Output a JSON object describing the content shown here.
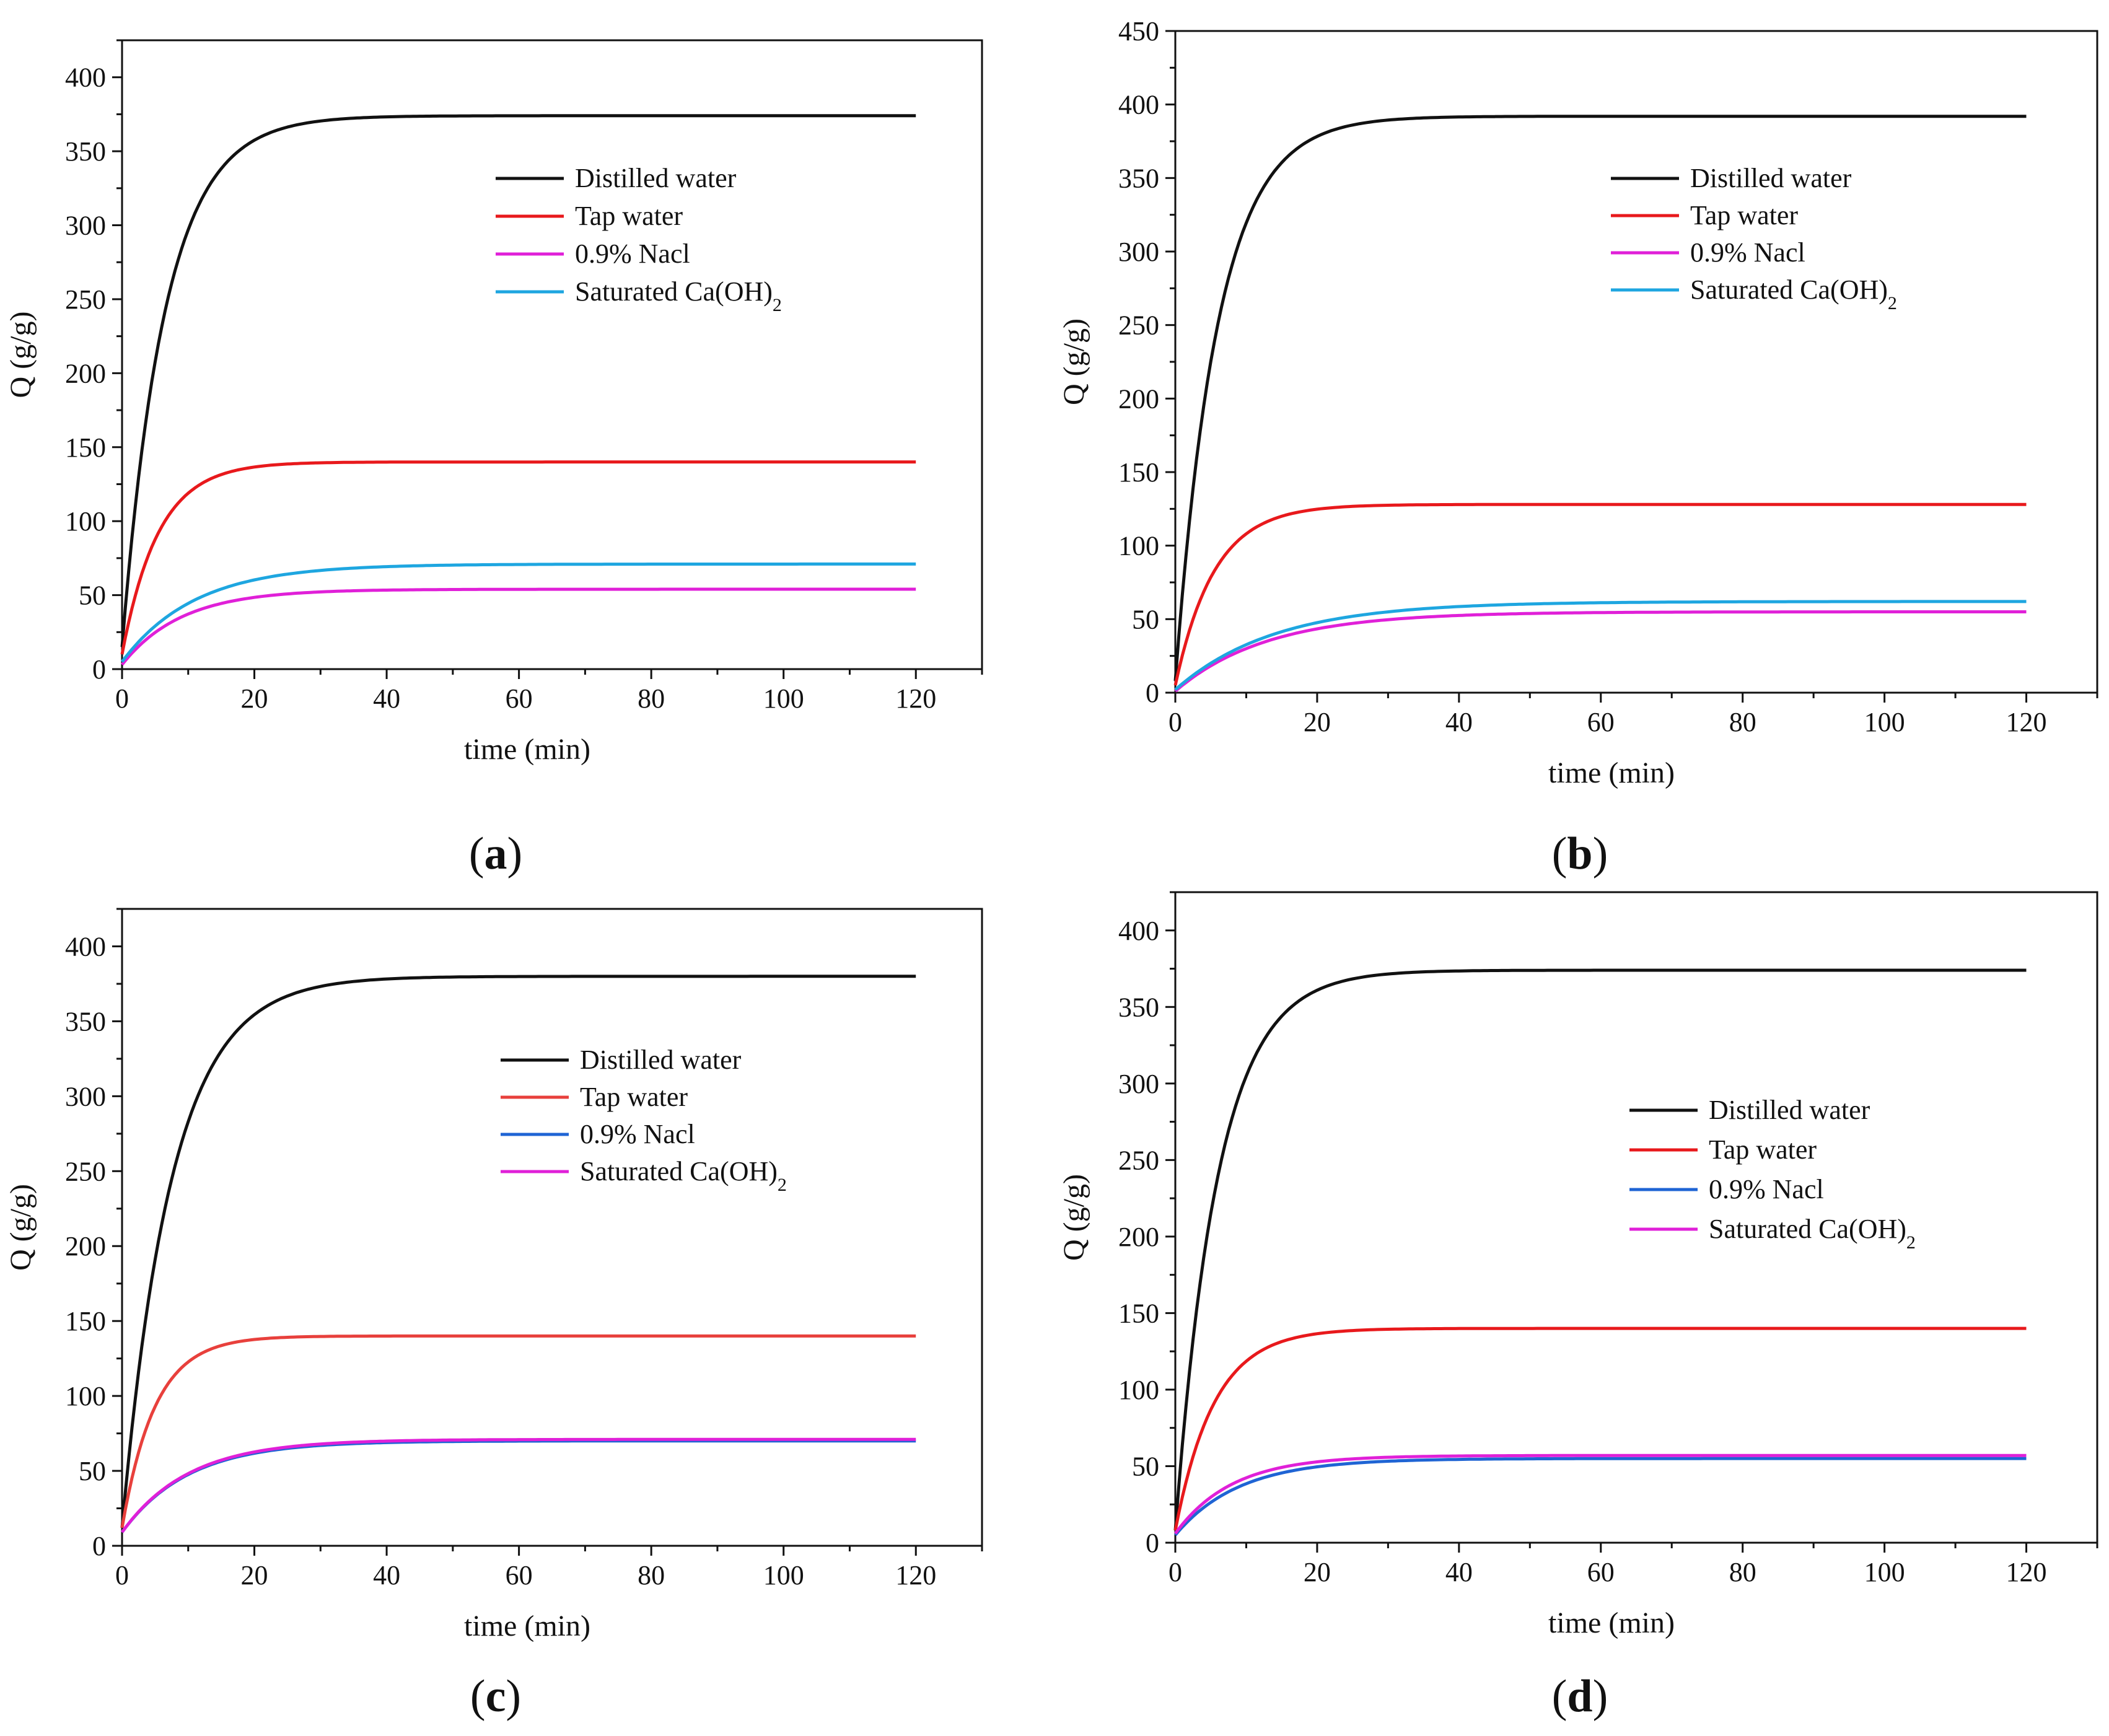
{
  "figure": {
    "panels": [
      "a",
      "b",
      "c",
      "d"
    ]
  },
  "chart_data": [
    {
      "id": "a",
      "type": "line",
      "panel_label": "a",
      "xlabel": "time (min)",
      "ylabel": "Q (g/g)",
      "xlim": [
        0,
        130
      ],
      "ylim": [
        0,
        425
      ],
      "xticks": [
        0,
        20,
        40,
        60,
        80,
        100,
        120
      ],
      "yticks": [
        0,
        50,
        100,
        150,
        200,
        250,
        300,
        350,
        400
      ],
      "legend_position": "upper-center",
      "series": [
        {
          "name": "Distilled water",
          "sub": "",
          "color": "#111111",
          "x_end": 120,
          "start": 15,
          "plateau": 374,
          "tau": 6.5
        },
        {
          "name": "Tap water",
          "sub": "",
          "color": "#e8191c",
          "x_end": 120,
          "start": 10,
          "plateau": 140,
          "tau": 5.5
        },
        {
          "name": "0.9% Nacl",
          "sub": "",
          "color": "#e020d8",
          "x_end": 120,
          "start": 3,
          "plateau": 54,
          "tau": 9
        },
        {
          "name": "Saturated Ca(OH)",
          "sub": "2",
          "color": "#1ea6e0",
          "x_end": 120,
          "start": 5,
          "plateau": 71,
          "tau": 11
        }
      ]
    },
    {
      "id": "b",
      "type": "line",
      "panel_label": "b",
      "xlabel": "time (min)",
      "ylabel": "Q (g/g)",
      "xlim": [
        0,
        130
      ],
      "ylim": [
        0,
        450
      ],
      "xticks": [
        0,
        20,
        40,
        60,
        80,
        100,
        120
      ],
      "yticks": [
        0,
        50,
        100,
        150,
        200,
        250,
        300,
        350,
        400,
        450
      ],
      "legend_position": "upper-center",
      "series": [
        {
          "name": "Distilled water",
          "sub": "",
          "color": "#111111",
          "x_end": 120,
          "start": 8,
          "plateau": 392,
          "tau": 6
        },
        {
          "name": "Tap water",
          "sub": "",
          "color": "#e8191c",
          "x_end": 120,
          "start": 5,
          "plateau": 128,
          "tau": 5.5
        },
        {
          "name": "0.9% Nacl",
          "sub": "",
          "color": "#e020d8",
          "x_end": 120,
          "start": 1,
          "plateau": 55,
          "tau": 13
        },
        {
          "name": "Saturated Ca(OH)",
          "sub": "2",
          "color": "#1ea6e0",
          "x_end": 120,
          "start": 2,
          "plateau": 62,
          "tau": 14
        }
      ]
    },
    {
      "id": "c",
      "type": "line",
      "panel_label": "c",
      "xlabel": "time (min)",
      "ylabel": "Q (g/g)",
      "xlim": [
        0,
        130
      ],
      "ylim": [
        0,
        425
      ],
      "xticks": [
        0,
        20,
        40,
        60,
        80,
        100,
        120
      ],
      "yticks": [
        0,
        50,
        100,
        150,
        200,
        250,
        300,
        350,
        400
      ],
      "legend_position": "center-right",
      "series": [
        {
          "name": "Distilled water",
          "sub": "",
          "color": "#111111",
          "x_end": 120,
          "start": 12,
          "plateau": 380,
          "tau": 7.5
        },
        {
          "name": "Tap water",
          "sub": "",
          "color": "#e8403c",
          "x_end": 120,
          "start": 12,
          "plateau": 140,
          "tau": 5
        },
        {
          "name": "0.9% Nacl",
          "sub": "",
          "color": "#1f64d4",
          "x_end": 120,
          "start": 9,
          "plateau": 70,
          "tau": 10
        },
        {
          "name": "Saturated Ca(OH)",
          "sub": "2",
          "color": "#e020d8",
          "x_end": 120,
          "start": 9,
          "plateau": 71,
          "tau": 10
        }
      ]
    },
    {
      "id": "d",
      "type": "line",
      "panel_label": "d",
      "xlabel": "time (min)",
      "ylabel": "Q (g/g)",
      "xlim": [
        0,
        130
      ],
      "ylim": [
        0,
        425
      ],
      "xticks": [
        0,
        20,
        40,
        60,
        80,
        100,
        120
      ],
      "yticks": [
        0,
        50,
        100,
        150,
        200,
        250,
        300,
        350,
        400
      ],
      "legend_position": "center-right",
      "series": [
        {
          "name": "Distilled water",
          "sub": "",
          "color": "#111111",
          "x_end": 120,
          "start": 8,
          "plateau": 374,
          "tau": 6
        },
        {
          "name": "Tap water",
          "sub": "",
          "color": "#e8191c",
          "x_end": 120,
          "start": 8,
          "plateau": 140,
          "tau": 5.5
        },
        {
          "name": "0.9% Nacl",
          "sub": "",
          "color": "#1f64d4",
          "x_end": 120,
          "start": 5,
          "plateau": 55,
          "tau": 9
        },
        {
          "name": "Saturated Ca(OH)",
          "sub": "2",
          "color": "#e020d8",
          "x_end": 120,
          "start": 6,
          "plateau": 57,
          "tau": 8
        }
      ]
    }
  ]
}
